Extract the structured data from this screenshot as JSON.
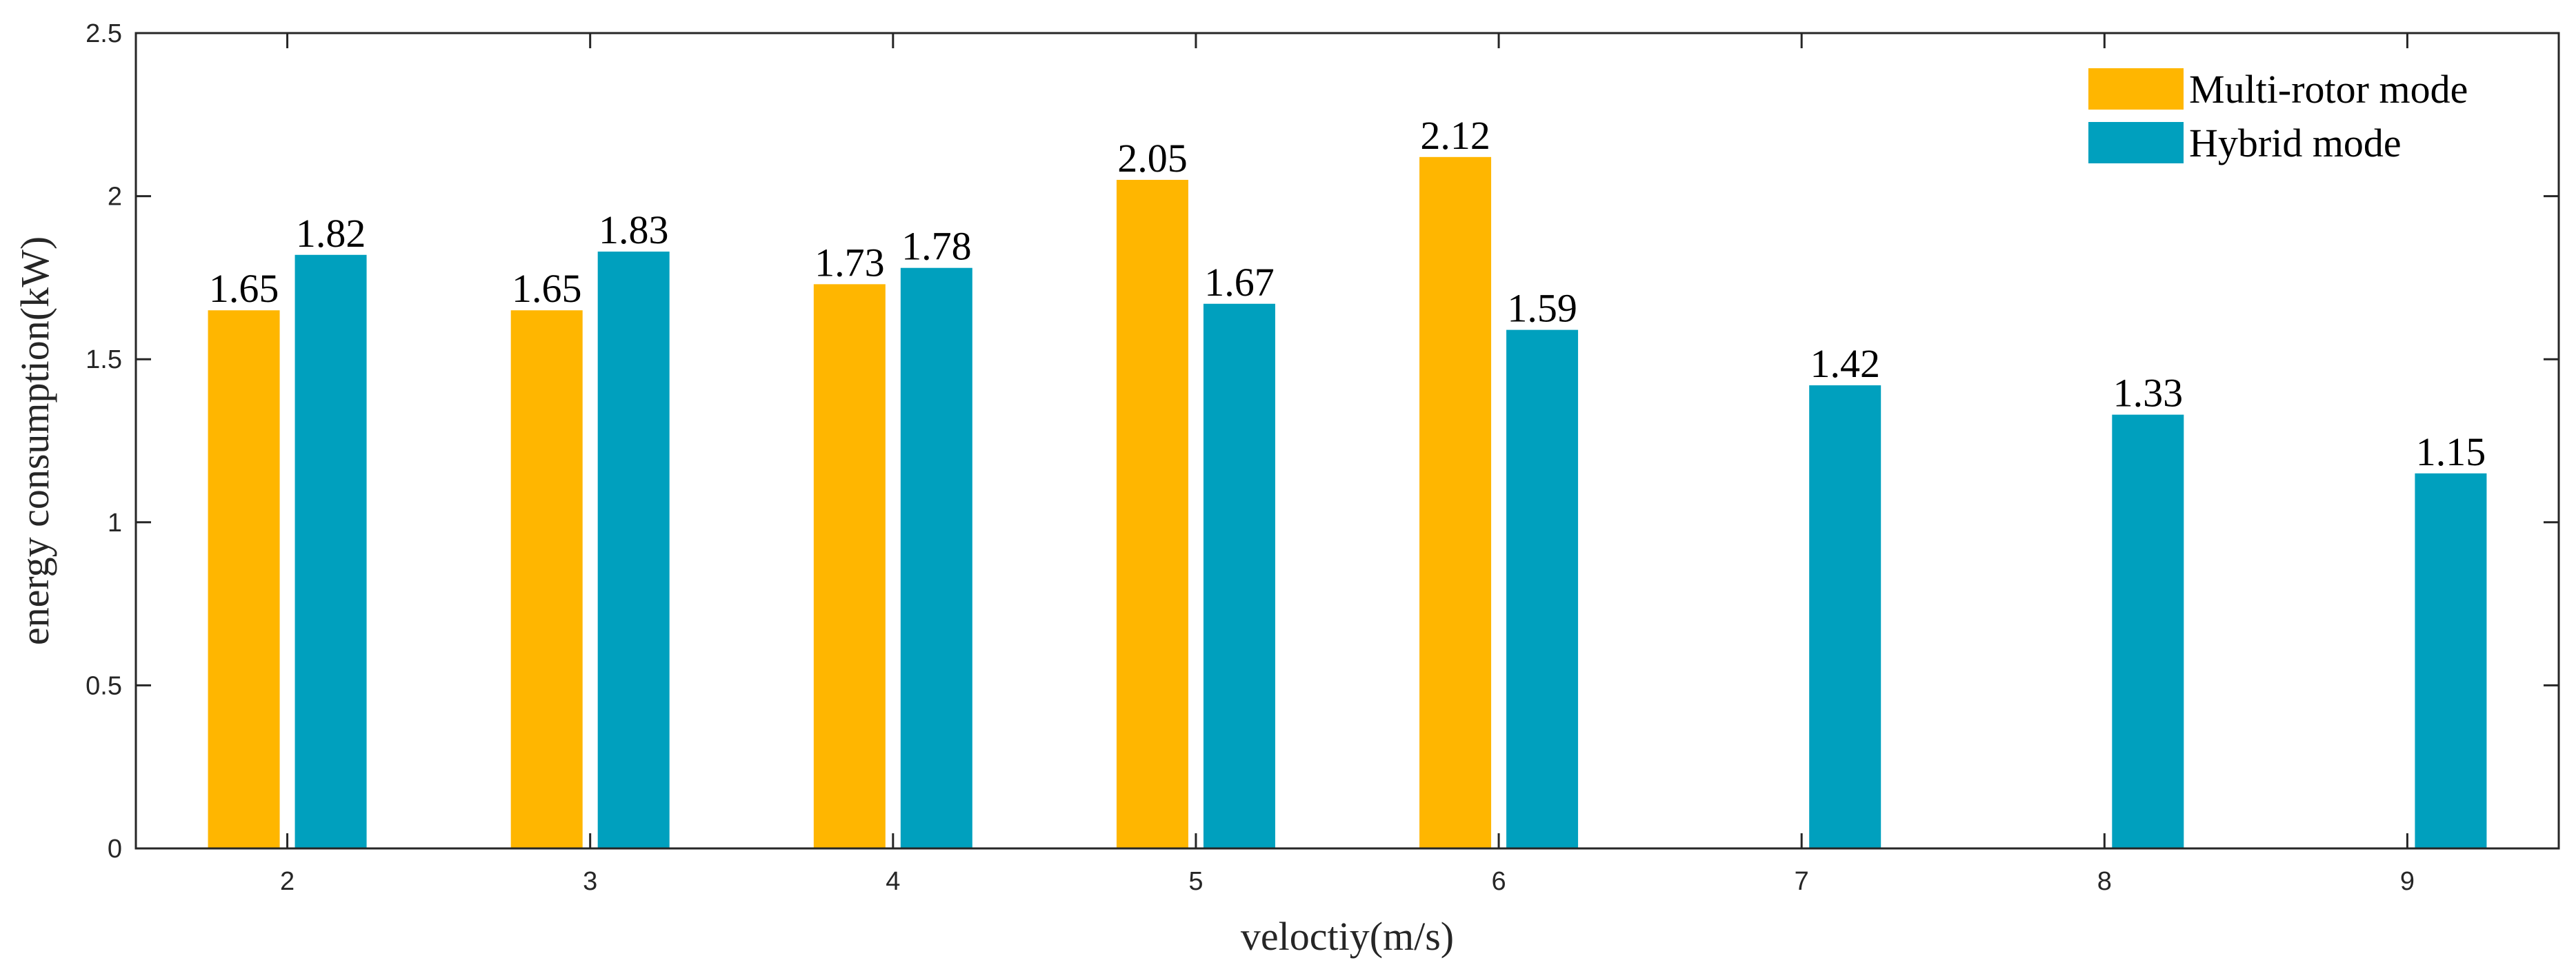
{
  "chart_data": {
    "type": "bar",
    "title": "",
    "xlabel": "veloctiy(m/s)",
    "ylabel": "energy consumption(kW)",
    "categories": [
      "2",
      "3",
      "4",
      "5",
      "6",
      "7",
      "8",
      "9"
    ],
    "ylim": [
      0,
      2.5
    ],
    "yticks": [
      0,
      0.5,
      1,
      1.5,
      2,
      2.5
    ],
    "ytick_labels": [
      "0",
      "0.5",
      "1",
      "1.5",
      "2",
      "2.5"
    ],
    "grid": false,
    "legend_position": "top-right",
    "series": [
      {
        "name": "Multi-rotor mode",
        "color": "#FFB600",
        "values": [
          1.65,
          1.65,
          1.73,
          2.05,
          2.12,
          null,
          null,
          null
        ],
        "labels": [
          "1.65",
          "1.65",
          "1.73",
          "2.05",
          "2.12",
          null,
          null,
          null
        ]
      },
      {
        "name": "Hybrid mode",
        "color": "#00A0BE",
        "values": [
          1.82,
          1.83,
          1.78,
          1.67,
          1.59,
          1.42,
          1.33,
          1.15
        ],
        "labels": [
          "1.82",
          "1.83",
          "1.78",
          "1.67",
          "1.59",
          "1.42",
          "1.33",
          "1.15"
        ]
      }
    ]
  }
}
